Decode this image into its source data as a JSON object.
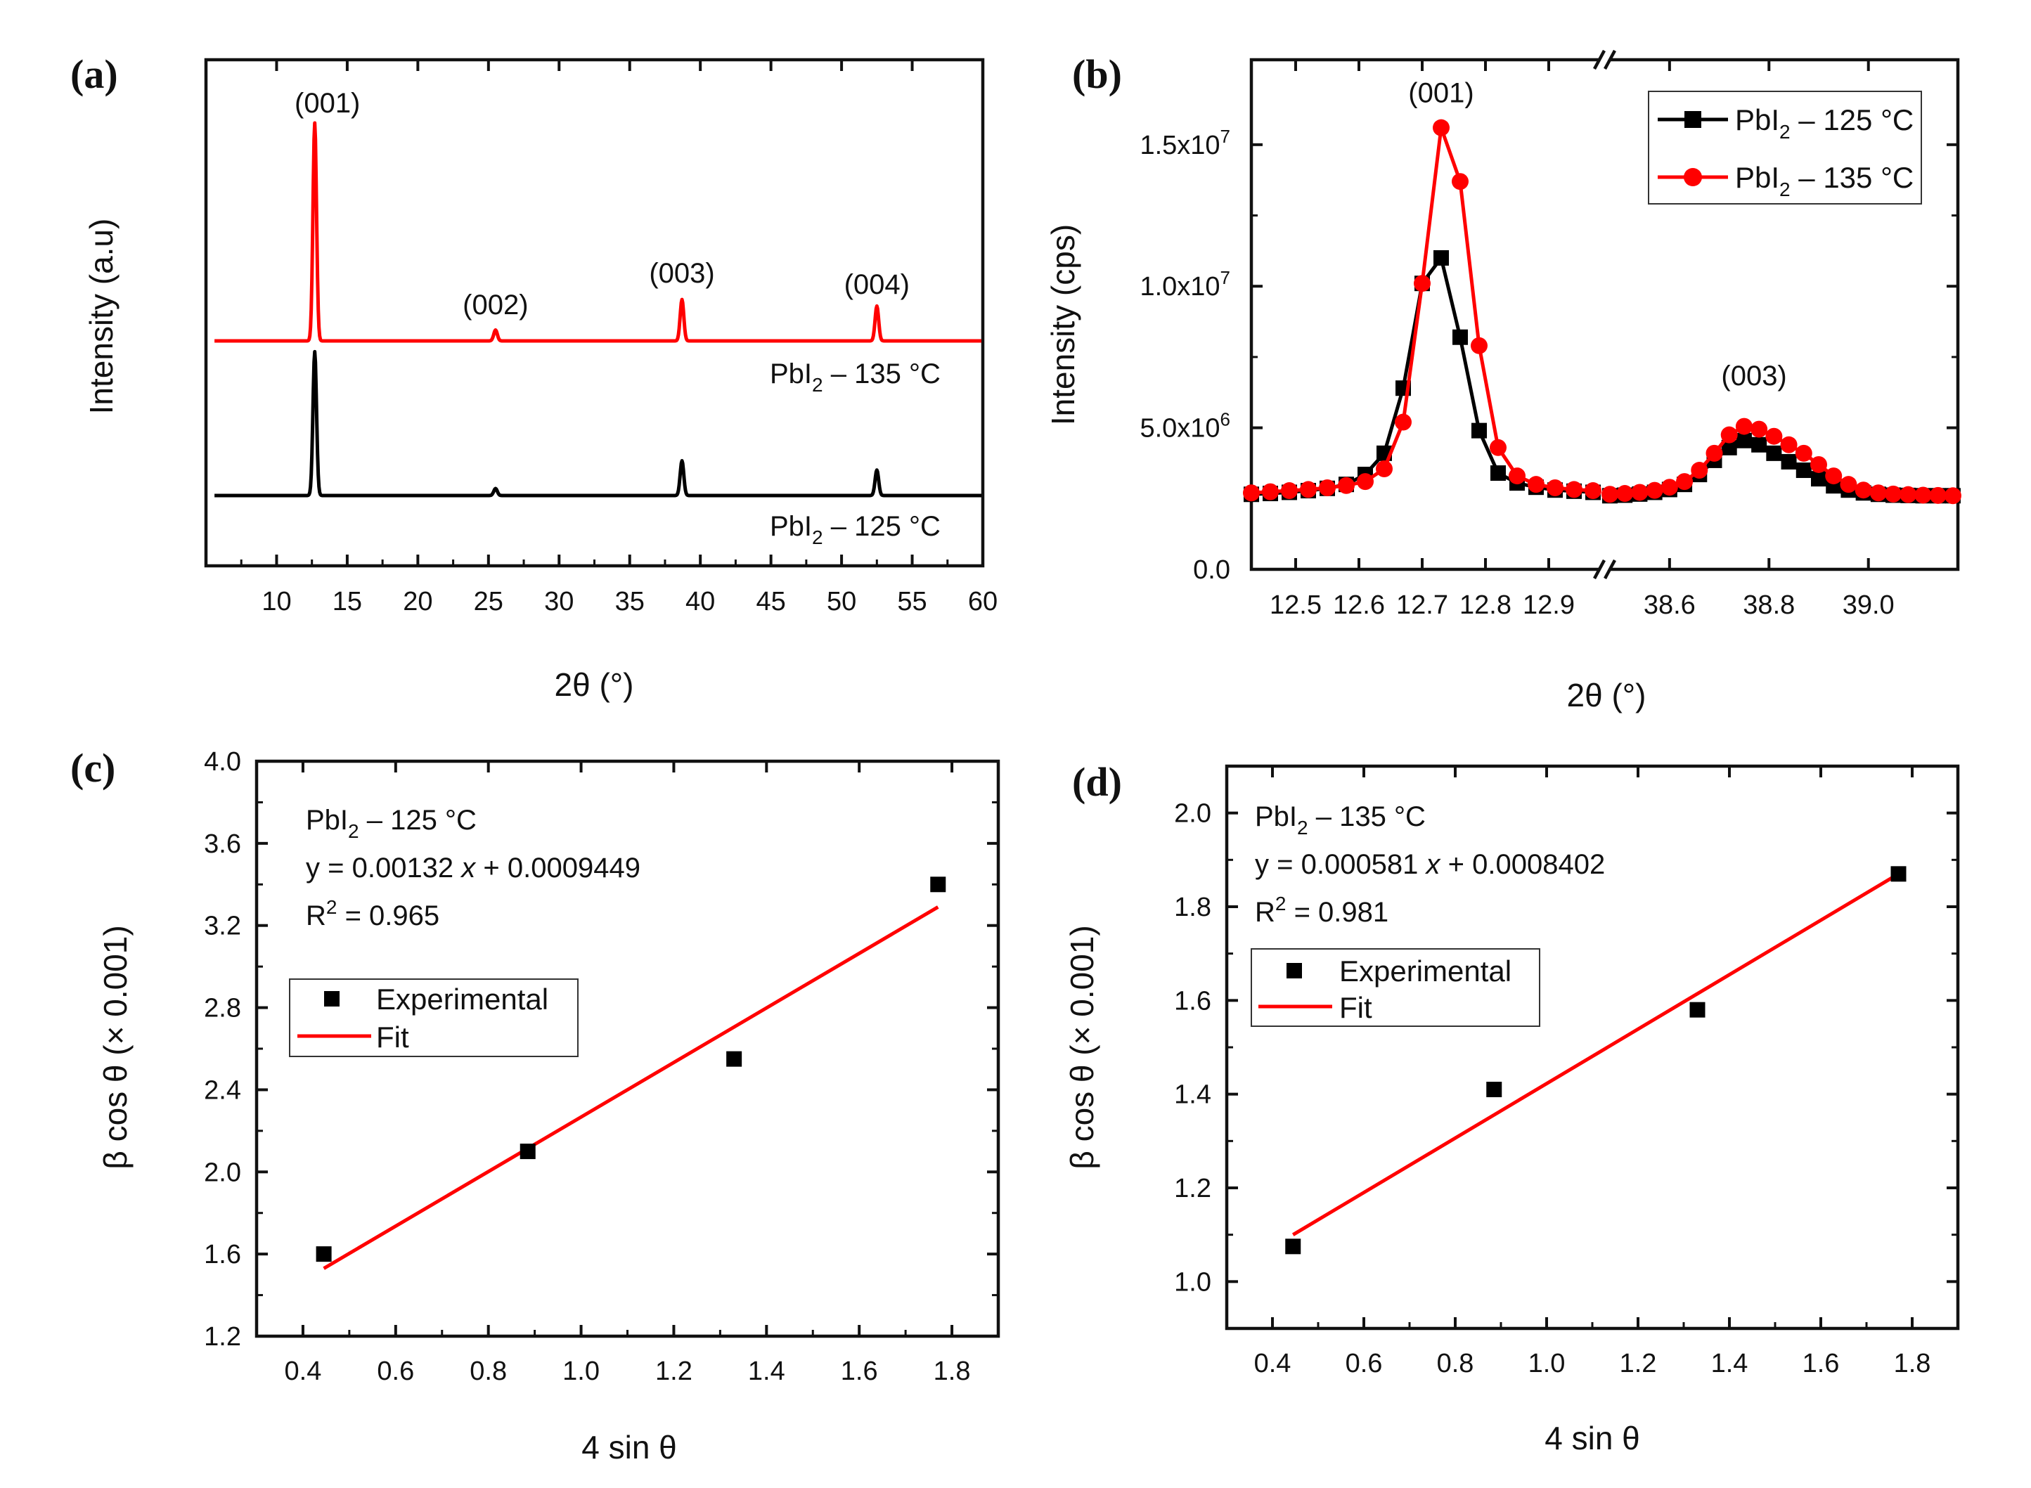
{
  "chart_data": [
    {
      "panel": "(a)",
      "type": "line",
      "xlabel": "2θ (°)",
      "ylabel": "Intensity (a.u)",
      "xlim": [
        5,
        60
      ],
      "xticks": [
        "10",
        "15",
        "20",
        "25",
        "30",
        "35",
        "40",
        "45",
        "50",
        "55",
        "60"
      ],
      "series": [
        {
          "name": "PbI₂ – 135 °C",
          "label_main": "PbI",
          "label_sub": "2",
          "label_rest": " – 135 °C",
          "color": "#ff0000",
          "peaks": [
            {
              "x": 12.7,
              "height": 1.0
            },
            {
              "x": 25.5,
              "height": 0.05
            },
            {
              "x": 38.7,
              "height": 0.19
            },
            {
              "x": 52.5,
              "height": 0.16
            }
          ]
        },
        {
          "name": "PbI₂ – 125 °C",
          "label_main": "PbI",
          "label_sub": "2",
          "label_rest": " – 125 °C",
          "color": "#000000",
          "peaks": [
            {
              "x": 12.7,
              "height": 0.62
            },
            {
              "x": 25.5,
              "height": 0.03
            },
            {
              "x": 38.7,
              "height": 0.15
            },
            {
              "x": 52.5,
              "height": 0.11
            }
          ]
        }
      ],
      "peak_labels": [
        {
          "text": "(001)",
          "x": 12.7
        },
        {
          "text": "(002)",
          "x": 25.5
        },
        {
          "text": "(003)",
          "x": 38.7
        },
        {
          "text": "(004)",
          "x": 52.5
        }
      ]
    },
    {
      "panel": "(b)",
      "type": "line",
      "xlabel": "2θ (°)",
      "ylabel": "Intensity (cps)",
      "ylim": [
        0,
        18000000
      ],
      "yticks": [
        {
          "value": 0,
          "text": "0.0",
          "exp": ""
        },
        {
          "value": 5000000,
          "text": "5.0x10",
          "exp": "6"
        },
        {
          "value": 10000000,
          "text": "1.0x10",
          "exp": "7"
        },
        {
          "value": 15000000,
          "text": "1.5x10",
          "exp": "7"
        }
      ],
      "x_segments": [
        {
          "range": [
            12.43,
            12.98
          ],
          "ticks": [
            "12.5",
            "12.6",
            "12.7",
            "12.8",
            "12.9"
          ],
          "tick_values": [
            12.5,
            12.6,
            12.7,
            12.8,
            12.9
          ]
        },
        {
          "range": [
            38.48,
            39.18
          ],
          "ticks": [
            "38.6",
            "38.8",
            "39.0"
          ],
          "tick_values": [
            38.6,
            38.8,
            39.0
          ]
        }
      ],
      "series": [
        {
          "name": "PbI₂ – 125 °C",
          "label_main": "PbI",
          "label_sub": "2",
          "label_rest": " – 125 °C",
          "color": "#000000",
          "marker": "square",
          "segment1": {
            "x": [
              12.43,
              12.46,
              12.49,
              12.52,
              12.55,
              12.58,
              12.61,
              12.64,
              12.67,
              12.7,
              12.73,
              12.76,
              12.79,
              12.82,
              12.85,
              12.88,
              12.91,
              12.94,
              12.97
            ],
            "y": [
              2650000,
              2680000,
              2720000,
              2780000,
              2860000,
              3000000,
              3350000,
              4100000,
              6400000,
              10100000,
              11000000,
              8200000,
              4900000,
              3400000,
              3050000,
              2900000,
              2800000,
              2760000,
              2720000
            ]
          },
          "segment2": {
            "x": [
              38.48,
              38.51,
              38.54,
              38.57,
              38.6,
              38.63,
              38.66,
              38.69,
              38.72,
              38.75,
              38.78,
              38.81,
              38.84,
              38.87,
              38.9,
              38.93,
              38.96,
              38.99,
              39.02,
              39.05,
              39.08,
              39.11,
              39.14,
              39.17
            ],
            "y": [
              2600000,
              2620000,
              2660000,
              2720000,
              2820000,
              3000000,
              3350000,
              3850000,
              4300000,
              4550000,
              4400000,
              4100000,
              3800000,
              3500000,
              3200000,
              2950000,
              2800000,
              2700000,
              2650000,
              2620000,
              2610000,
              2600000,
              2600000,
              2600000
            ]
          }
        },
        {
          "name": "PbI₂ – 135 °C",
          "label_main": "PbI",
          "label_sub": "2",
          "label_rest": " – 135 °C",
          "color": "#ff0000",
          "marker": "circle",
          "segment1": {
            "x": [
              12.43,
              12.46,
              12.49,
              12.52,
              12.55,
              12.58,
              12.61,
              12.64,
              12.67,
              12.7,
              12.73,
              12.76,
              12.79,
              12.82,
              12.85,
              12.88,
              12.91,
              12.94,
              12.97
            ],
            "y": [
              2700000,
              2740000,
              2780000,
              2820000,
              2880000,
              2960000,
              3100000,
              3550000,
              5200000,
              10100000,
              15600000,
              13700000,
              7900000,
              4300000,
              3300000,
              3000000,
              2880000,
              2820000,
              2780000
            ]
          },
          "segment2": {
            "x": [
              38.48,
              38.51,
              38.54,
              38.57,
              38.6,
              38.63,
              38.66,
              38.69,
              38.72,
              38.75,
              38.78,
              38.81,
              38.84,
              38.87,
              38.9,
              38.93,
              38.96,
              38.99,
              39.02,
              39.05,
              39.08,
              39.11,
              39.14,
              39.17
            ],
            "y": [
              2650000,
              2680000,
              2720000,
              2790000,
              2900000,
              3100000,
              3500000,
              4100000,
              4750000,
              5050000,
              4950000,
              4700000,
              4400000,
              4100000,
              3700000,
              3300000,
              3000000,
              2800000,
              2700000,
              2660000,
              2640000,
              2620000,
              2610000,
              2600000
            ]
          }
        }
      ],
      "peak_labels": [
        {
          "text": "(001)",
          "segment": 1,
          "x": 12.73,
          "y": 16500000
        },
        {
          "text": "(003)",
          "segment": 2,
          "x": 38.77,
          "y": 6500000
        }
      ]
    },
    {
      "panel": "(c)",
      "type": "scatter",
      "xlabel": "4 sin θ",
      "ylabel": "β cos θ (× 0.001)",
      "xlim": [
        0.3,
        1.9
      ],
      "ylim": [
        1.2,
        4.0
      ],
      "xticks": [
        "0.4",
        "0.6",
        "0.8",
        "1.0",
        "1.2",
        "1.4",
        "1.6",
        "1.8"
      ],
      "yticks": [
        "1.2",
        "1.6",
        "2.0",
        "2.4",
        "2.8",
        "3.2",
        "3.6",
        "4.0"
      ],
      "experimental": {
        "x": [
          0.445,
          0.885,
          1.33,
          1.77
        ],
        "y": [
          1.6,
          2.1,
          2.55,
          3.4
        ]
      },
      "fit": {
        "x": [
          0.445,
          1.77
        ],
        "y": [
          1.53,
          3.29
        ]
      },
      "annotation": {
        "sample_main": "PbI",
        "sample_sub": "2",
        "sample_rest": " – 125 °C",
        "equation_pre": "y = 0.00132 ",
        "equation_var": "x",
        "equation_post": " + 0.0009449",
        "r2_pre": "R",
        "r2_sup": "2",
        "r2_post": " = 0.965"
      },
      "legend": [
        "Experimental",
        "Fit"
      ]
    },
    {
      "panel": "(d)",
      "type": "scatter",
      "xlabel": "4 sin θ",
      "ylabel": "β cos θ (× 0.001)",
      "xlim": [
        0.3,
        1.9
      ],
      "ylim": [
        0.9,
        2.1
      ],
      "xticks": [
        "0.4",
        "0.6",
        "0.8",
        "1.0",
        "1.2",
        "1.4",
        "1.6",
        "1.8"
      ],
      "yticks": [
        "1.0",
        "1.2",
        "1.4",
        "1.6",
        "1.8",
        "2.0"
      ],
      "experimental": {
        "x": [
          0.445,
          0.885,
          1.33,
          1.77
        ],
        "y": [
          1.075,
          1.41,
          1.58,
          1.87
        ]
      },
      "fit": {
        "x": [
          0.445,
          1.77
        ],
        "y": [
          1.1,
          1.87
        ]
      },
      "annotation": {
        "sample_main": "PbI",
        "sample_sub": "2",
        "sample_rest": " – 135 °C",
        "equation_pre": "y = 0.000581 ",
        "equation_var": "x",
        "equation_post": " + 0.0008402",
        "r2_pre": "R",
        "r2_sup": "2",
        "r2_post": " = 0.981"
      },
      "legend": [
        "Experimental",
        "Fit"
      ]
    }
  ]
}
